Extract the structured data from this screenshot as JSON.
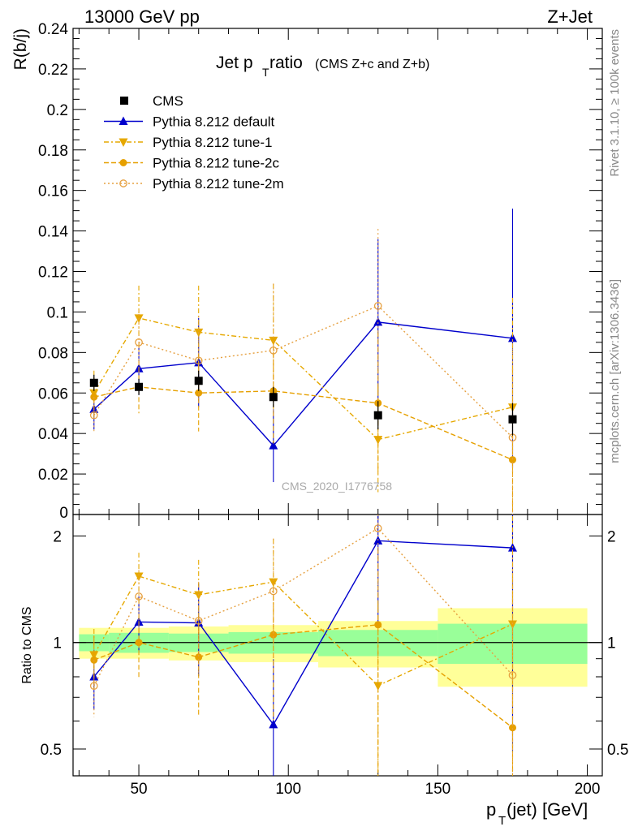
{
  "header": {
    "left": "13000 GeV pp",
    "right": "Z+Jet"
  },
  "side_labels": {
    "rivet": "Rivet 3.1.10, ≥ 100k events",
    "mcplots": "mcplots.cern.ch [arXiv:1306.3436]"
  },
  "watermark": "CMS_2020_I1776758",
  "chart_data": {
    "type": "scatter",
    "title_main": "Jet p",
    "title_sub": "T",
    "title_rest": " ratio",
    "title_small": "(CMS  Z+c and Z+b)",
    "ylabel": "R(b/j)",
    "xlabel_main": "p",
    "xlabel_sub": "T",
    "xlabel_rest": " (jet) [GeV]",
    "ratio_ylabel": "Ratio to CMS",
    "xlim": [
      28,
      205
    ],
    "ylim": [
      0,
      0.24
    ],
    "ratio_ylim": [
      0.42,
      2.3
    ],
    "ratio_scale": "log",
    "x_ticks": [
      50,
      100,
      150,
      200
    ],
    "y_ticks": [
      0.02,
      0.04,
      0.06,
      0.08,
      0.1,
      0.12,
      0.14,
      0.16,
      0.18,
      0.2,
      0.22,
      0.24
    ],
    "y_tick_labels": [
      "0.02",
      "0.04",
      "0.06",
      "0.08",
      "0.1",
      "0.12",
      "0.14",
      "0.16",
      "0.18",
      "0.2",
      "0.22",
      "0.24"
    ],
    "y_zero_label": "0",
    "ratio_ticks": [
      0.5,
      1,
      2
    ],
    "ratio_tick_labels": [
      "0.5",
      "1",
      "2"
    ],
    "x": [
      35,
      50,
      70,
      95,
      130,
      175
    ],
    "bin_edges": [
      30,
      40,
      60,
      80,
      110,
      150,
      200
    ],
    "data": {
      "name": "CMS",
      "values": [
        0.065,
        0.063,
        0.066,
        0.058,
        0.049,
        0.047
      ],
      "errors": [
        0.004,
        0.004,
        0.005,
        0.005,
        0.007,
        0.008
      ],
      "band_green": [
        0.055,
        0.065,
        0.06,
        0.07,
        0.085,
        0.13
      ],
      "band_yellow": [
        0.1,
        0.1,
        0.11,
        0.12,
        0.15,
        0.25
      ]
    },
    "series": [
      {
        "name": "Pythia 8.212 default",
        "color": "#0000cc",
        "marker": "triangle-up",
        "dash": "",
        "values": [
          0.052,
          0.072,
          0.075,
          0.034,
          0.095,
          0.087
        ],
        "errors": [
          0.01,
          0.013,
          0.022,
          0.018,
          0.041,
          0.064
        ]
      },
      {
        "name": "Pythia 8.212 tune-1",
        "color": "#e6a800",
        "marker": "triangle-down",
        "dash": "6,3,2,3",
        "values": [
          0.06,
          0.097,
          0.09,
          0.086,
          0.037,
          0.053
        ],
        "errors": [
          0.011,
          0.016,
          0.023,
          0.028,
          0.026,
          0.054
        ]
      },
      {
        "name": "Pythia 8.212 tune-2c",
        "color": "#e6a000",
        "marker": "circle",
        "dash": "6,3",
        "values": [
          0.058,
          0.063,
          0.06,
          0.061,
          0.055,
          0.027
        ],
        "errors": [
          0.01,
          0.013,
          0.019,
          0.026,
          0.035,
          0.045
        ]
      },
      {
        "name": "Pythia 8.212 tune-2m",
        "color": "#e6a040",
        "marker": "open-circle",
        "dash": "2,3",
        "values": [
          0.049,
          0.085,
          0.076,
          0.081,
          0.103,
          0.038
        ],
        "errors": [
          0.009,
          0.016,
          0.022,
          0.033,
          0.038,
          0.048
        ]
      }
    ],
    "grid": false,
    "legend_position": "top-left"
  }
}
